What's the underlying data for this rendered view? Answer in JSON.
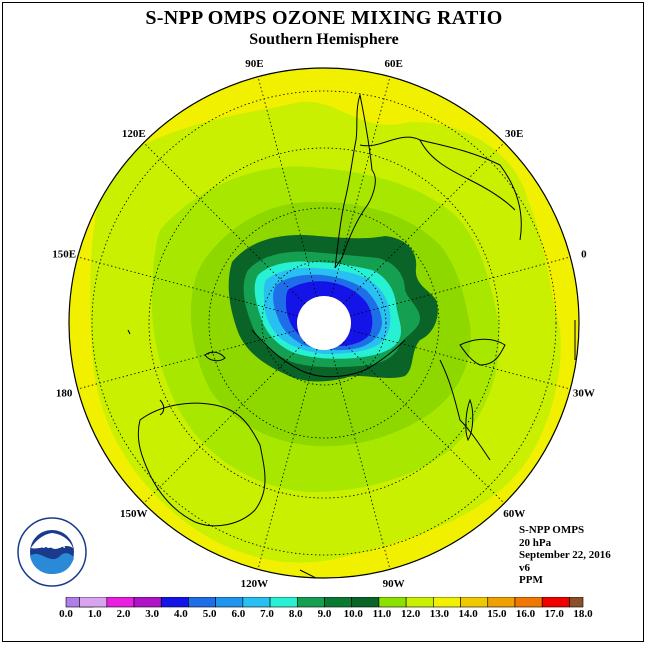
{
  "title": "S-NPP OMPS OZONE MIXING RATIO",
  "subtitle": "Southern Hemisphere",
  "info": {
    "instrument": "S-NPP OMPS",
    "level": "20 hPa",
    "date": "September 22, 2016",
    "version": "v6",
    "units": "PPM"
  },
  "logo": {
    "text": "NOAA",
    "ring_text": "NATIONAL OCEANIC AND ATMOSPHERIC ADMINISTRATION · U.S. DEPARTMENT OF COMMERCE"
  },
  "longitude_labels": [
    {
      "label": "0",
      "deg": 0
    },
    {
      "label": "30W",
      "deg": -30
    },
    {
      "label": "60W",
      "deg": -60
    },
    {
      "label": "90W",
      "deg": -90
    },
    {
      "label": "120W",
      "deg": -120
    },
    {
      "label": "150W",
      "deg": -150
    },
    {
      "label": "180",
      "deg": 180
    },
    {
      "label": "150E",
      "deg": 150
    },
    {
      "label": "120E",
      "deg": 120
    },
    {
      "label": "90E",
      "deg": 90
    },
    {
      "label": "60E",
      "deg": 60
    },
    {
      "label": "30E",
      "deg": 30
    }
  ],
  "colorbar": {
    "ticks": [
      "0.0",
      "1.0",
      "2.0",
      "3.0",
      "4.0",
      "5.0",
      "6.0",
      "7.0",
      "8.0",
      "9.0",
      "10.0",
      "11.0",
      "12.0",
      "13.0",
      "14.0",
      "15.0",
      "16.0",
      "17.0",
      "18.0"
    ],
    "colors": [
      "#b07ee8",
      "#d8a4f0",
      "#e81ee0",
      "#b012c8",
      "#1414e8",
      "#1e6ee8",
      "#1e96f0",
      "#28c0f0",
      "#28f0d2",
      "#14a050",
      "#0a7a32",
      "#0a6428",
      "#8ee000",
      "#c8f000",
      "#f0f000",
      "#f0c800",
      "#f0a000",
      "#f07800",
      "#f00000",
      "#8c5028"
    ]
  },
  "map_colors": {
    "yellow": "#f0f000",
    "yellowgreen": "#c8f000",
    "lightgreen": "#a8e800",
    "green": "#8ed800",
    "darkgreen": "#0a6428",
    "green2": "#14a050",
    "teal": "#28f0d2",
    "cyan": "#28c0f0",
    "blue": "#1e6ee8",
    "darkblue": "#1414e8"
  }
}
